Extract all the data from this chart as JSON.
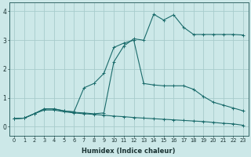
{
  "xlabel": "Humidex (Indice chaleur)",
  "bg_color": "#cce8e8",
  "grid_color": "#a8cccc",
  "line_color": "#1a6b6b",
  "xlim": [
    -0.5,
    23.5
  ],
  "ylim": [
    -0.3,
    4.3
  ],
  "xticks": [
    0,
    1,
    2,
    3,
    4,
    5,
    6,
    7,
    8,
    9,
    10,
    11,
    12,
    13,
    14,
    15,
    16,
    17,
    18,
    19,
    20,
    21,
    22,
    23
  ],
  "yticks": [
    0,
    1,
    2,
    3,
    4
  ],
  "s1_x": [
    0,
    1,
    2,
    3,
    4,
    5,
    6,
    7,
    8,
    9,
    10,
    11,
    12,
    13,
    14,
    15,
    16,
    17,
    18,
    19,
    20,
    21,
    22,
    23
  ],
  "s1_y": [
    0.28,
    0.3,
    0.45,
    0.58,
    0.58,
    0.52,
    0.48,
    0.45,
    0.43,
    0.4,
    0.37,
    0.35,
    0.32,
    0.3,
    0.28,
    0.26,
    0.24,
    0.22,
    0.2,
    0.18,
    0.15,
    0.12,
    0.1,
    0.05
  ],
  "s2_x": [
    0,
    1,
    2,
    3,
    4,
    5,
    6,
    7,
    8,
    9,
    10,
    11,
    12,
    13,
    14,
    15,
    16,
    17,
    18,
    19,
    20,
    21,
    22,
    23
  ],
  "s2_y": [
    0.28,
    0.3,
    0.45,
    0.62,
    0.62,
    0.55,
    0.52,
    1.35,
    1.5,
    1.85,
    2.75,
    2.9,
    3.0,
    1.5,
    1.45,
    1.42,
    1.42,
    1.42,
    1.3,
    1.05,
    0.85,
    0.75,
    0.65,
    0.55
  ],
  "s3_x": [
    0,
    1,
    2,
    3,
    4,
    5,
    6,
    7,
    8,
    9,
    10,
    11,
    12,
    13,
    14,
    15,
    16,
    17,
    18,
    19,
    20,
    21,
    22,
    23
  ],
  "s3_y": [
    0.28,
    0.3,
    0.45,
    0.62,
    0.62,
    0.55,
    0.5,
    0.48,
    0.45,
    0.48,
    2.25,
    2.8,
    3.05,
    3.0,
    3.9,
    3.7,
    3.88,
    3.45,
    3.2,
    3.2,
    3.2,
    3.2,
    3.2,
    3.18
  ]
}
